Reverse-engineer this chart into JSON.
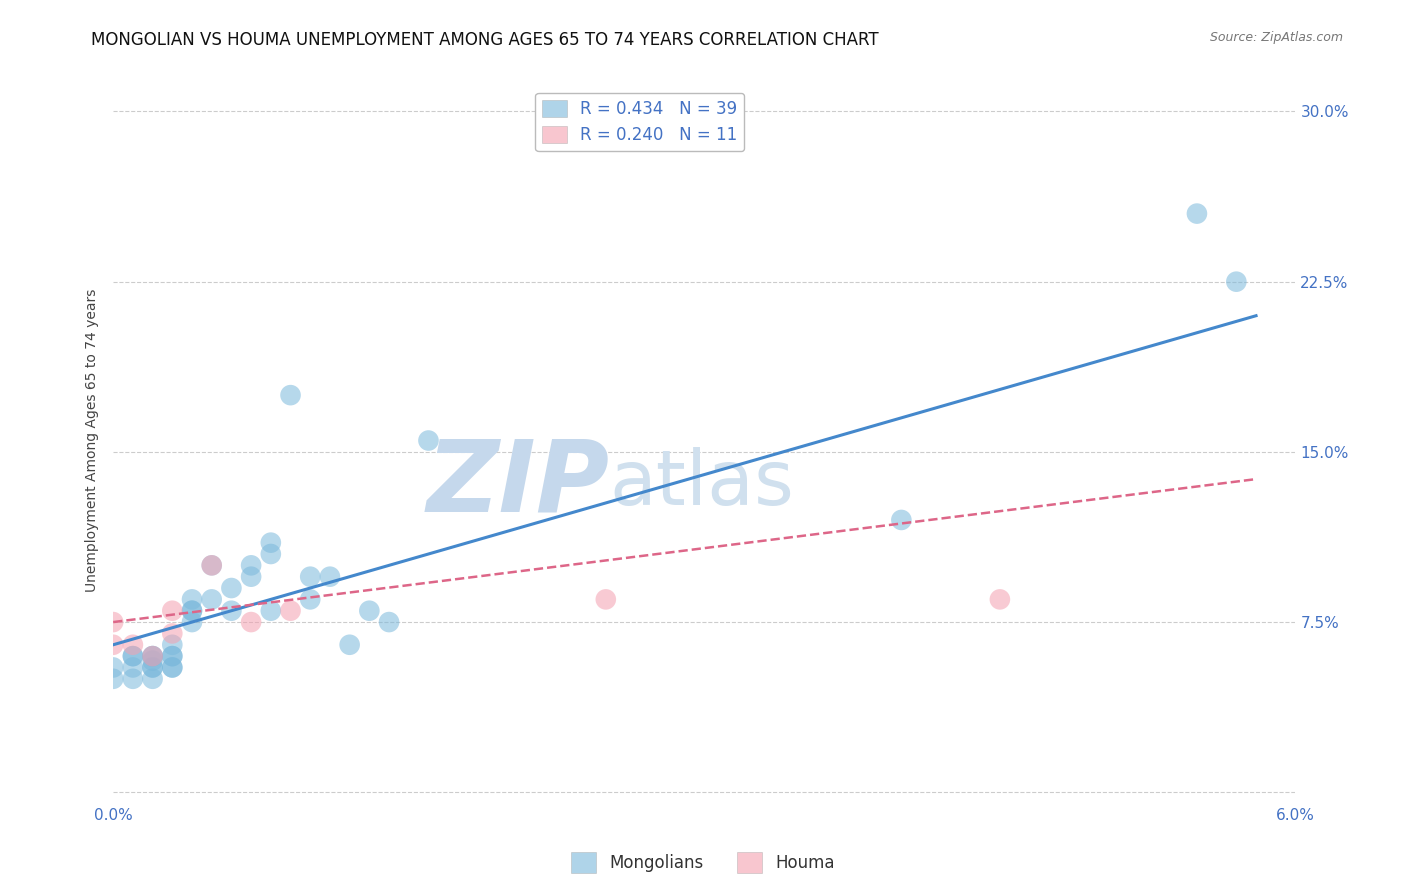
{
  "title": "MONGOLIAN VS HOUMA UNEMPLOYMENT AMONG AGES 65 TO 74 YEARS CORRELATION CHART",
  "source": "Source: ZipAtlas.com",
  "ylabel": "Unemployment Among Ages 65 to 74 years",
  "xlim": [
    0.0,
    0.06
  ],
  "ylim": [
    -0.005,
    0.315
  ],
  "xticks": [
    0.0,
    0.01,
    0.02,
    0.03,
    0.04,
    0.05,
    0.06
  ],
  "yticks": [
    0.0,
    0.075,
    0.15,
    0.225,
    0.3
  ],
  "xtick_labels": [
    "0.0%",
    "",
    "",
    "",
    "",
    "",
    "6.0%"
  ],
  "ytick_labels": [
    "",
    "7.5%",
    "15.0%",
    "22.5%",
    "30.0%"
  ],
  "mongolian_scatter_x": [
    0.0,
    0.0,
    0.001,
    0.001,
    0.001,
    0.001,
    0.002,
    0.002,
    0.002,
    0.002,
    0.002,
    0.002,
    0.003,
    0.003,
    0.003,
    0.003,
    0.003,
    0.004,
    0.004,
    0.004,
    0.004,
    0.005,
    0.005,
    0.006,
    0.006,
    0.007,
    0.007,
    0.008,
    0.008,
    0.008,
    0.009,
    0.01,
    0.01,
    0.011,
    0.012,
    0.013,
    0.014,
    0.016,
    0.04,
    0.055,
    0.057
  ],
  "mongolian_scatter_y": [
    0.055,
    0.05,
    0.06,
    0.055,
    0.06,
    0.05,
    0.06,
    0.06,
    0.058,
    0.055,
    0.05,
    0.055,
    0.065,
    0.06,
    0.06,
    0.055,
    0.055,
    0.08,
    0.085,
    0.08,
    0.075,
    0.1,
    0.085,
    0.09,
    0.08,
    0.095,
    0.1,
    0.105,
    0.11,
    0.08,
    0.175,
    0.095,
    0.085,
    0.095,
    0.065,
    0.08,
    0.075,
    0.155,
    0.12,
    0.255,
    0.225
  ],
  "houma_scatter_x": [
    0.0,
    0.0,
    0.001,
    0.002,
    0.003,
    0.003,
    0.005,
    0.007,
    0.009,
    0.025,
    0.045
  ],
  "houma_scatter_y": [
    0.075,
    0.065,
    0.065,
    0.06,
    0.07,
    0.08,
    0.1,
    0.075,
    0.08,
    0.085,
    0.085
  ],
  "mongolian_line_x": [
    0.0,
    0.058
  ],
  "mongolian_line_y": [
    0.065,
    0.21
  ],
  "houma_line_x": [
    0.0,
    0.058
  ],
  "houma_line_y": [
    0.075,
    0.138
  ],
  "scatter_color_mongolian": "#7ab8db",
  "scatter_color_houma": "#f4a0b0",
  "line_color_mongolian": "#4488cc",
  "line_color_houma": "#dd6688",
  "watermark_zip_color": "#b8cce4",
  "watermark_atlas_color": "#c8d8e8",
  "background_color": "#ffffff",
  "grid_color": "#cccccc",
  "title_fontsize": 12,
  "axis_label_fontsize": 10,
  "tick_label_fontsize": 11,
  "tick_label_color": "#4472c4",
  "scatter_size": 220
}
